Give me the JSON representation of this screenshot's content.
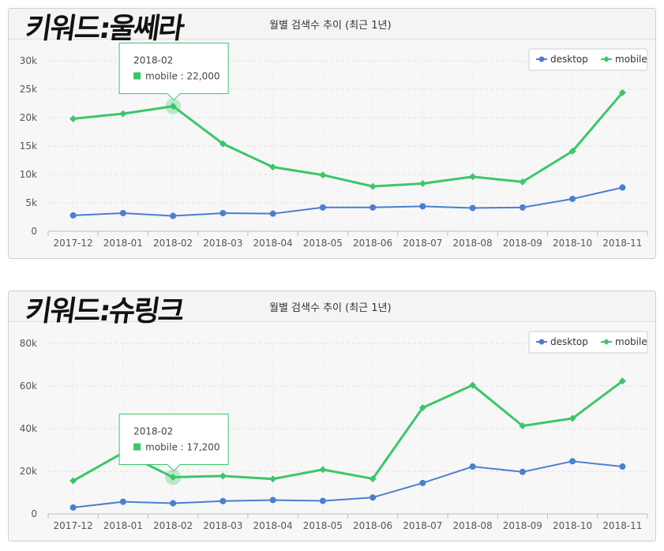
{
  "charts": [
    {
      "keyword_label": "키워드:울쎄라",
      "chart_data": {
        "type": "line",
        "title": "월별 검색수 추이 (최근 1년)",
        "categories": [
          "2017-12",
          "2018-01",
          "2018-02",
          "2018-03",
          "2018-04",
          "2018-05",
          "2018-06",
          "2018-07",
          "2018-08",
          "2018-09",
          "2018-10",
          "2018-11"
        ],
        "series": [
          {
            "name": "desktop",
            "color": "#4a7fd1",
            "marker": "circle",
            "values": [
              2800,
              3200,
              2700,
              3200,
              3100,
              4200,
              4200,
              4400,
              4100,
              4200,
              5700,
              7700
            ]
          },
          {
            "name": "mobile",
            "color": "#3cc66a",
            "marker": "diamond",
            "values": [
              19800,
              20700,
              22000,
              15400,
              11300,
              9900,
              7900,
              8400,
              9600,
              8700,
              14100,
              24400
            ]
          }
        ],
        "ylim": [
          0,
          30000
        ],
        "yticks": [
          0,
          5000,
          10000,
          15000,
          20000,
          25000,
          30000
        ],
        "ytick_labels": [
          "0",
          "5k",
          "10k",
          "15k",
          "20k",
          "25k",
          "30k"
        ],
        "grid": true,
        "legend": "top-right",
        "tooltip": {
          "x_label": "2018-02",
          "series": "mobile",
          "value_label": "22,000",
          "index": 2
        }
      }
    },
    {
      "keyword_label": "키워드:슈링크",
      "chart_data": {
        "type": "line",
        "title": "월별 검색수 추이 (최근 1년)",
        "categories": [
          "2017-12",
          "2018-01",
          "2018-02",
          "2018-03",
          "2018-04",
          "2018-05",
          "2018-06",
          "2018-07",
          "2018-08",
          "2018-09",
          "2018-10",
          "2018-11"
        ],
        "series": [
          {
            "name": "desktop",
            "color": "#4a7fd1",
            "marker": "circle",
            "values": [
              3000,
              5700,
              5000,
              6000,
              6500,
              6100,
              7700,
              14500,
              22200,
              19700,
              24700,
              22200
            ]
          },
          {
            "name": "mobile",
            "color": "#3cc66a",
            "marker": "diamond",
            "values": [
              15500,
              28700,
              17200,
              17800,
              16400,
              20800,
              16500,
              49800,
              60400,
              41300,
              44800,
              62300
            ]
          }
        ],
        "ylim": [
          0,
          80000
        ],
        "yticks": [
          0,
          20000,
          40000,
          60000,
          80000
        ],
        "ytick_labels": [
          "0",
          "20k",
          "40k",
          "60k",
          "80k"
        ],
        "grid": true,
        "legend": "top-right",
        "tooltip": {
          "x_label": "2018-02",
          "series": "mobile",
          "value_label": "17,200",
          "index": 2
        }
      }
    }
  ]
}
